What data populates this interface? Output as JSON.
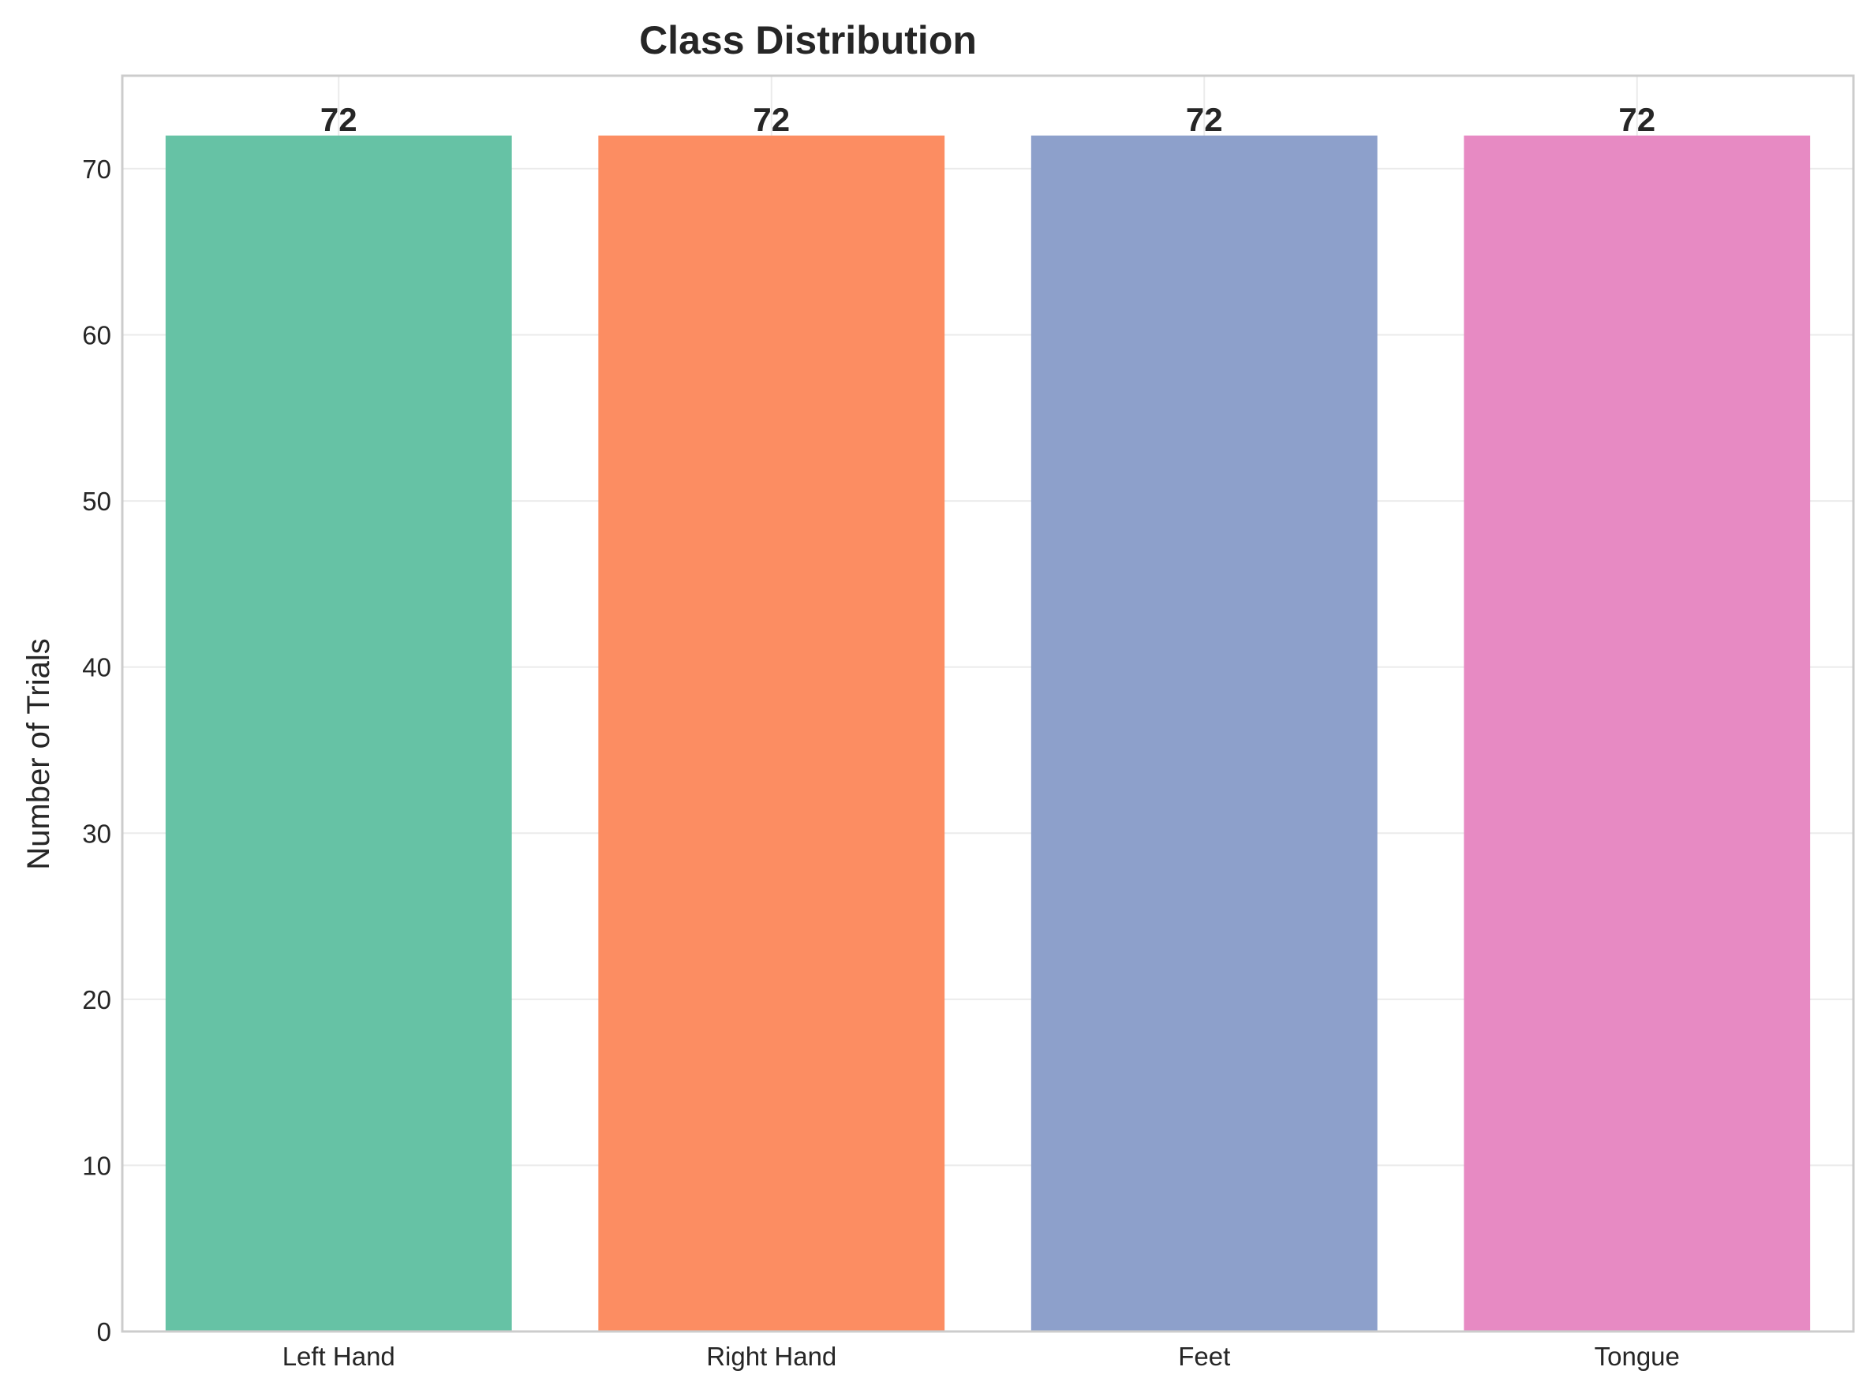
{
  "chart_data": {
    "type": "bar",
    "title": "Class Distribution",
    "xlabel": "",
    "ylabel": "Number of Trials",
    "categories": [
      "Left Hand",
      "Right Hand",
      "Feet",
      "Tongue"
    ],
    "values": [
      72,
      72,
      72,
      72
    ],
    "value_labels": [
      "72",
      "72",
      "72",
      "72"
    ],
    "colors": [
      "#66c2a5",
      "#fc8d62",
      "#8da0cb",
      "#e78ac3"
    ],
    "ylim": [
      0,
      75.6
    ],
    "yticks": [
      0,
      10,
      20,
      30,
      40,
      50,
      60,
      70
    ],
    "grid": true,
    "legend": false
  }
}
